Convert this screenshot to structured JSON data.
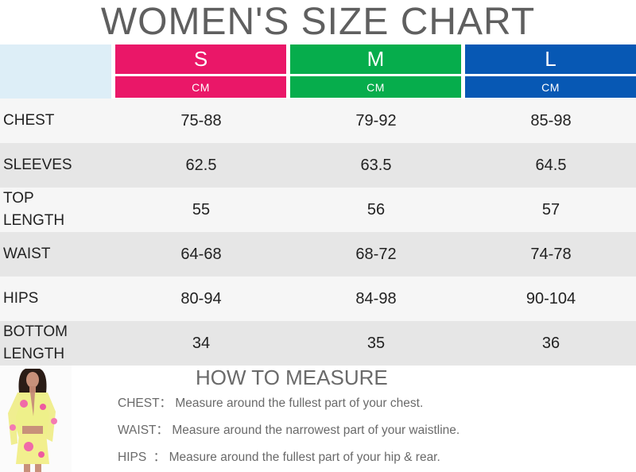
{
  "title": "WOMEN'S SIZE CHART",
  "sizes": [
    {
      "label": "S",
      "unit": "CM",
      "color": "#ea1768"
    },
    {
      "label": "M",
      "unit": "CM",
      "color": "#06ad4c"
    },
    {
      "label": "L",
      "unit": "CM",
      "color": "#0758b4"
    }
  ],
  "rows": [
    {
      "label": "CHEST",
      "values": [
        "75-88",
        "79-92",
        "85-98"
      ]
    },
    {
      "label": "SLEEVES",
      "values": [
        "62.5",
        "63.5",
        "64.5"
      ]
    },
    {
      "label": "TOP\nLENGTH",
      "values": [
        "55",
        "56",
        "57"
      ]
    },
    {
      "label": "WAIST",
      "values": [
        "64-68",
        "68-72",
        "74-78"
      ]
    },
    {
      "label": "HIPS",
      "values": [
        "80-94",
        "84-98",
        "90-104"
      ]
    },
    {
      "label": "BOTTOM\nLENGTH",
      "values": [
        "34",
        "35",
        "36"
      ]
    }
  ],
  "how_to_measure": {
    "title": "HOW TO MEASURE",
    "items": [
      {
        "term": "CHEST：",
        "text": "Measure around the fullest part of your chest."
      },
      {
        "term": "WAIST：",
        "text": "Measure around the narrowest part of your waistline."
      },
      {
        "term": "HIPS  ：",
        "text": "Measure around the fullest part of your hip & rear."
      }
    ]
  }
}
